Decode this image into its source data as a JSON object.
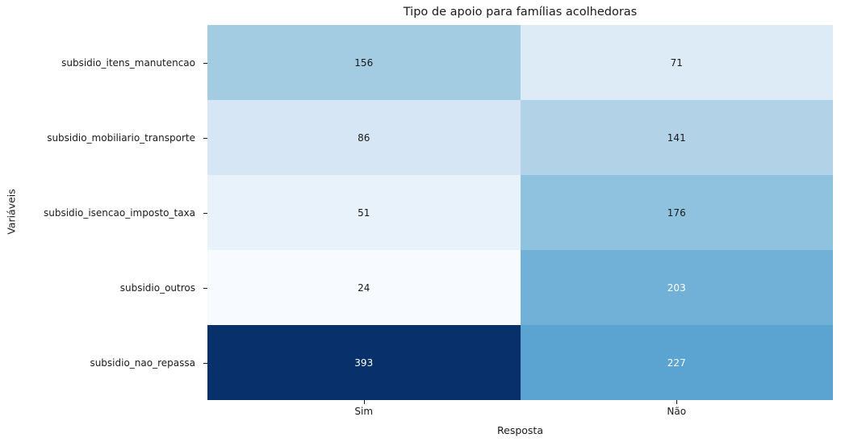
{
  "chart_data": {
    "type": "heatmap",
    "title": "Tipo de apoio para famílias acolhedoras",
    "xlabel": "Resposta",
    "ylabel": "Variáveis",
    "colormap": "Blues",
    "legend_position": "none",
    "value_range": [
      24,
      393
    ],
    "columns": [
      "Sim",
      "Não"
    ],
    "rows": [
      "subsidio_itens_manutencao",
      "subsidio_mobiliario_transporte",
      "subsidio_isencao_imposto_taxa",
      "subsidio_outros",
      "subsidio_nao_repassa"
    ],
    "values": [
      [
        156,
        71
      ],
      [
        86,
        141
      ],
      [
        51,
        176
      ],
      [
        24,
        203
      ],
      [
        393,
        227
      ]
    ],
    "cell_colors": [
      [
        "#a3cce3",
        "#ddebf7"
      ],
      [
        "#d6e6f4",
        "#b1d2e7"
      ],
      [
        "#e8f2fa",
        "#8fc2de"
      ],
      [
        "#f7fbff",
        "#71b1d7"
      ],
      [
        "#08306b",
        "#5ba3d0"
      ]
    ],
    "text_colors": [
      [
        "#1a1a1a",
        "#1a1a1a"
      ],
      [
        "#1a1a1a",
        "#1a1a1a"
      ],
      [
        "#1a1a1a",
        "#1a1a1a"
      ],
      [
        "#1a1a1a",
        "#ffffff"
      ],
      [
        "#ffffff",
        "#ffffff"
      ]
    ]
  }
}
